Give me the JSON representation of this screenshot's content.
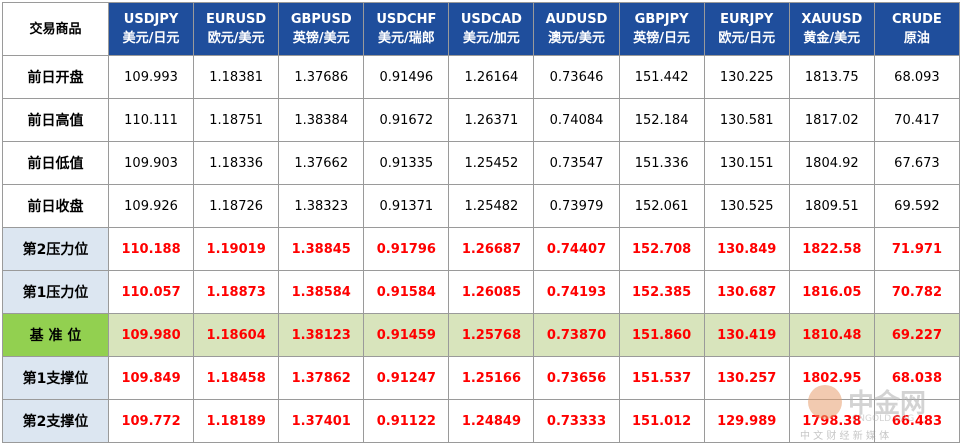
{
  "header": {
    "corner": "交易商品",
    "columns": [
      {
        "code": "USDJPY",
        "name": "美元/日元"
      },
      {
        "code": "EURUSD",
        "name": "欧元/美元"
      },
      {
        "code": "GBPUSD",
        "name": "英镑/美元"
      },
      {
        "code": "USDCHF",
        "name": "美元/瑞郎"
      },
      {
        "code": "USDCAD",
        "name": "美元/加元"
      },
      {
        "code": "AUDUSD",
        "name": "澳元/美元"
      },
      {
        "code": "GBPJPY",
        "name": "英镑/日元"
      },
      {
        "code": "EURJPY",
        "name": "欧元/日元"
      },
      {
        "code": "XAUUSD",
        "name": "黄金/美元"
      },
      {
        "code": "CRUDE",
        "name": "原油"
      }
    ]
  },
  "table": {
    "rows": [
      {
        "label": "前日开盘",
        "values": [
          "109.993",
          "1.18381",
          "1.37686",
          "0.91496",
          "1.26164",
          "0.73646",
          "151.442",
          "130.225",
          "1813.75",
          "68.093"
        ]
      },
      {
        "label": "前日高值",
        "values": [
          "110.111",
          "1.18751",
          "1.38384",
          "0.91672",
          "1.26371",
          "0.74084",
          "152.184",
          "130.581",
          "1817.02",
          "70.417"
        ]
      },
      {
        "label": "前日低值",
        "values": [
          "109.903",
          "1.18336",
          "1.37662",
          "0.91335",
          "1.25452",
          "0.73547",
          "151.336",
          "130.151",
          "1804.92",
          "67.673"
        ]
      },
      {
        "label": "前日收盘",
        "values": [
          "109.926",
          "1.18726",
          "1.38323",
          "0.91371",
          "1.25482",
          "0.73979",
          "152.061",
          "130.525",
          "1809.51",
          "69.592"
        ]
      },
      {
        "label": "第2压力位",
        "values": [
          "110.188",
          "1.19019",
          "1.38845",
          "0.91796",
          "1.26687",
          "0.74407",
          "152.708",
          "130.849",
          "1822.58",
          "71.971"
        ]
      },
      {
        "label": "第1压力位",
        "values": [
          "110.057",
          "1.18873",
          "1.38584",
          "0.91584",
          "1.26085",
          "0.74193",
          "152.385",
          "130.687",
          "1816.05",
          "70.782"
        ]
      },
      {
        "label": "基 准 位",
        "values": [
          "109.980",
          "1.18604",
          "1.38123",
          "0.91459",
          "1.25768",
          "0.73870",
          "151.860",
          "130.419",
          "1810.48",
          "69.227"
        ]
      },
      {
        "label": "第1支撑位",
        "values": [
          "109.849",
          "1.18458",
          "1.37862",
          "0.91247",
          "1.25166",
          "0.73656",
          "151.537",
          "130.257",
          "1802.95",
          "68.038"
        ]
      },
      {
        "label": "第2支撑位",
        "values": [
          "109.772",
          "1.18189",
          "1.37401",
          "0.91122",
          "1.24849",
          "0.73333",
          "151.012",
          "129.989",
          "1798.38",
          "66.483"
        ]
      }
    ]
  },
  "watermark": {
    "brand": "中金网",
    "site": "CNGOLD.ORG",
    "tagline": "中 文 财 经 新 媒 体"
  }
}
